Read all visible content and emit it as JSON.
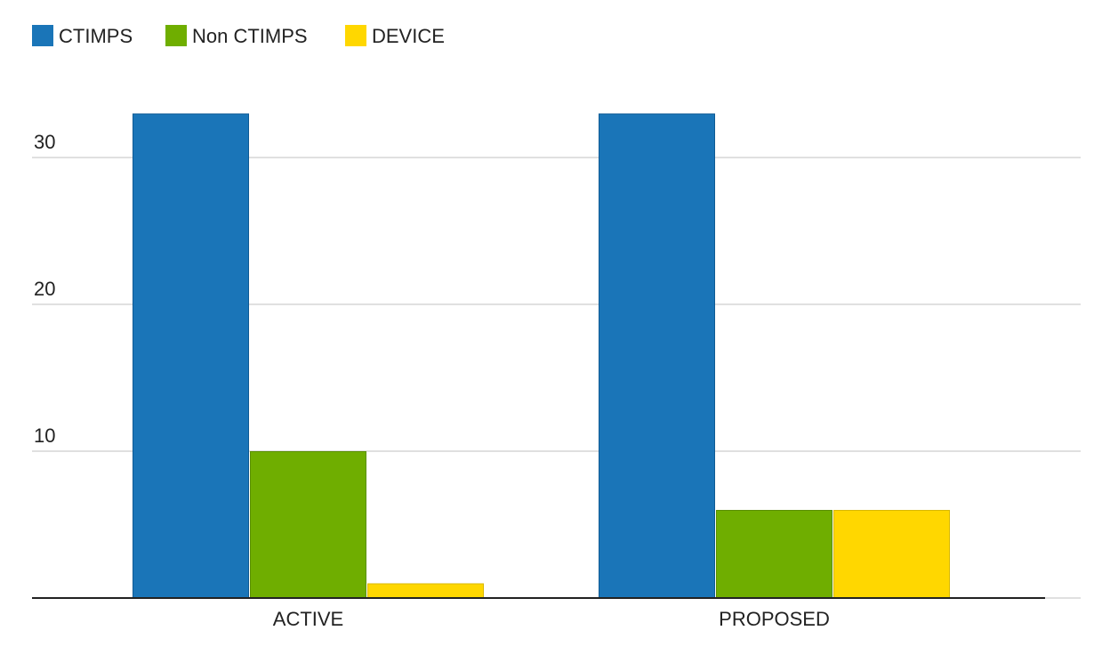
{
  "chart_data": {
    "type": "bar",
    "categories": [
      "ACTIVE",
      "PROPOSED"
    ],
    "series": [
      {
        "name": "CTIMPS",
        "values": [
          33,
          33
        ],
        "color": "#1a75b8",
        "stroke": "#0f5a94"
      },
      {
        "name": "Non CTIMPS",
        "values": [
          10,
          6
        ],
        "color": "#6fae00",
        "stroke": "#5a9000"
      },
      {
        "name": "DEVICE",
        "values": [
          1,
          6
        ],
        "color": "#ffd700",
        "stroke": "#d9b800"
      }
    ],
    "yticks": [
      10,
      20,
      30
    ],
    "ylim": [
      0,
      33
    ],
    "grid": true,
    "legend": "top-left",
    "title": "",
    "xlabel": "",
    "ylabel": ""
  }
}
